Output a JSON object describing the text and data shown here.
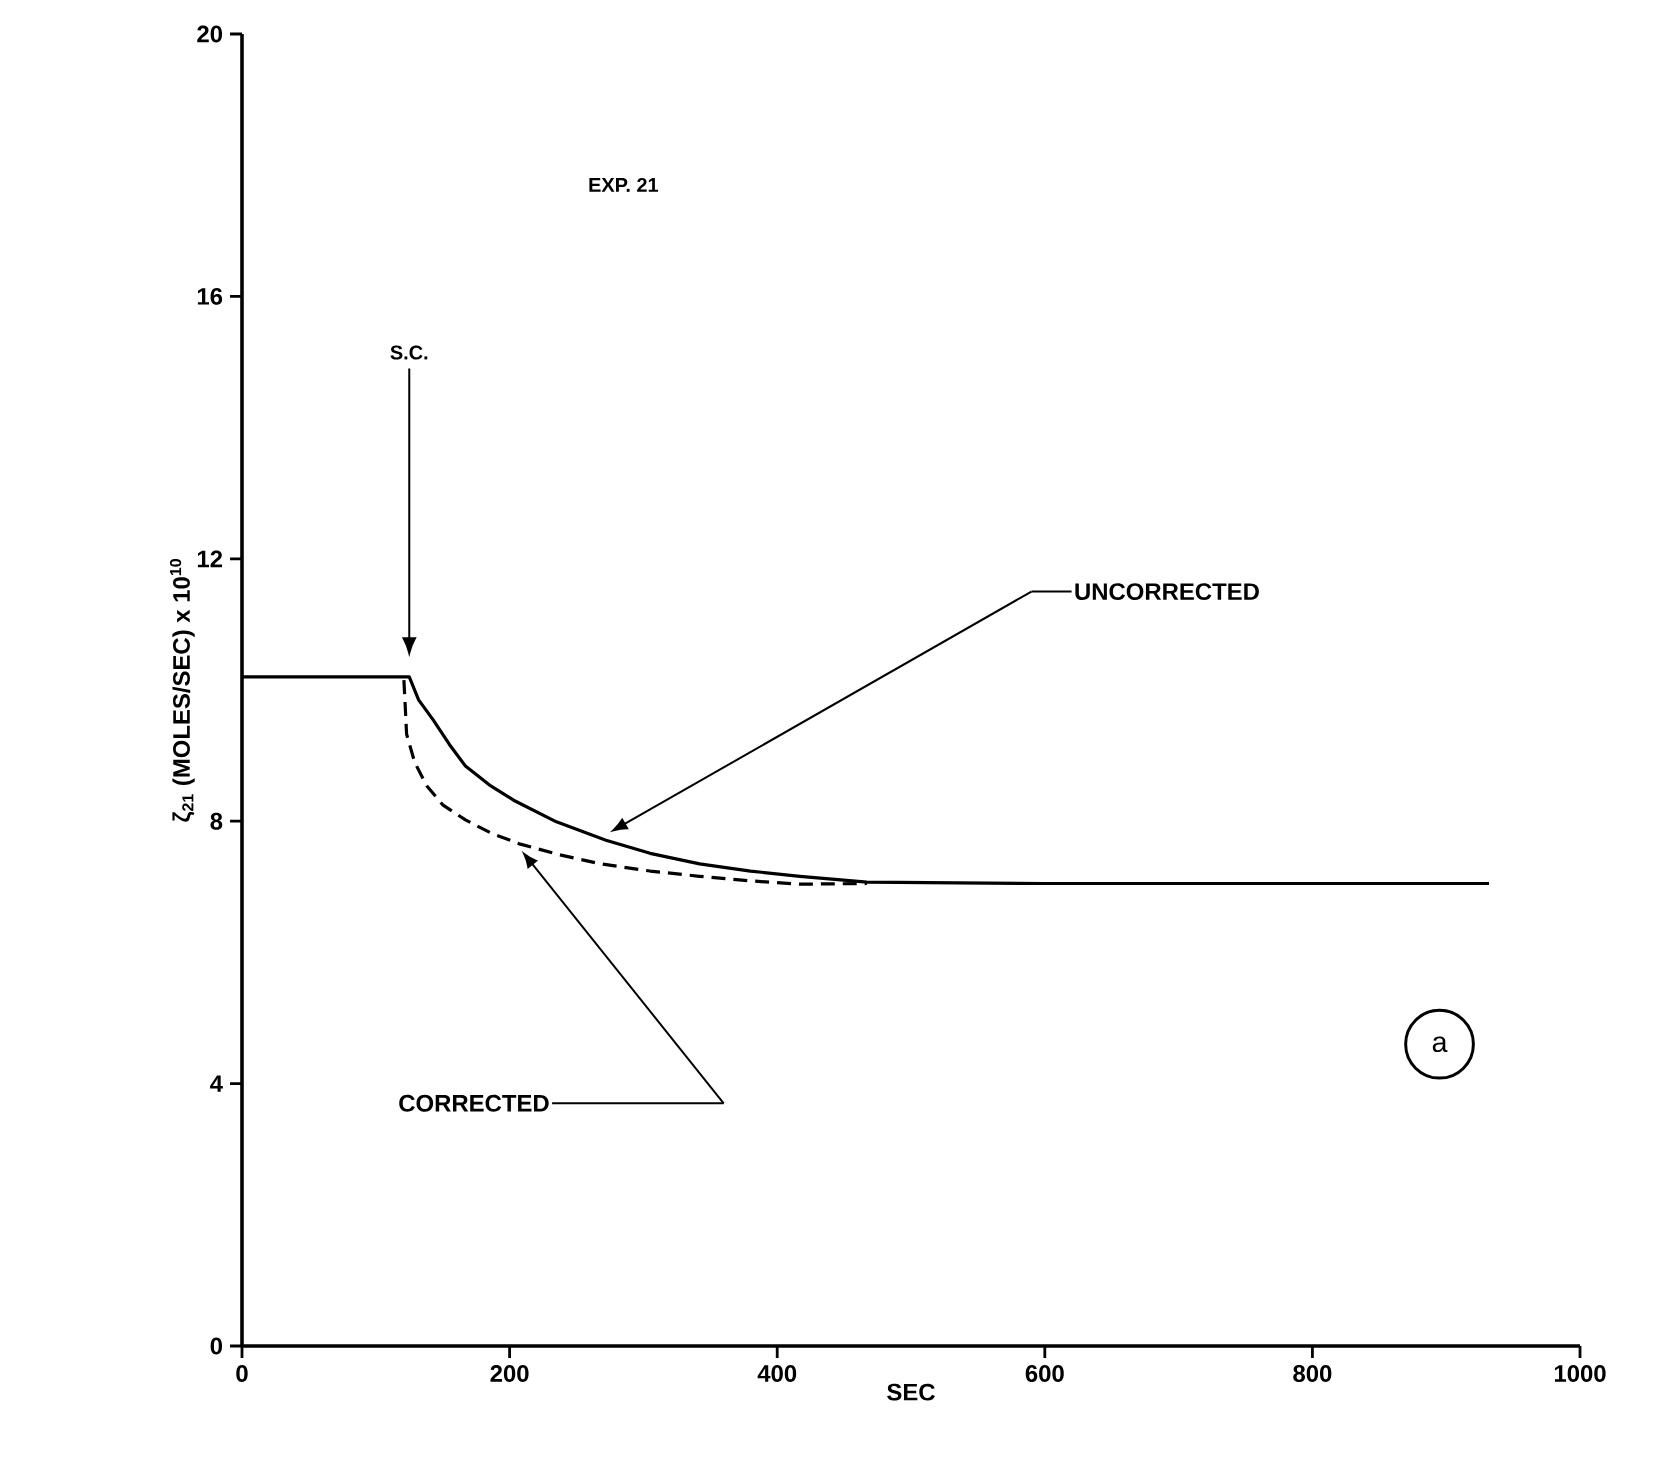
{
  "chart_data": {
    "type": "line",
    "xlabel": "SEC",
    "ylabel": "ζ$_{21}$ (MOLES/SEC) x 10$^{10}$",
    "xlim": [
      0,
      1000
    ],
    "ylim": [
      0,
      20
    ],
    "xticks": [
      0,
      200,
      400,
      600,
      800,
      1000
    ],
    "yticks": [
      0,
      4,
      8,
      12,
      16,
      20
    ],
    "series": [
      {
        "color": "#000000",
        "line_style": "solid",
        "x": [
          0,
          125,
          132,
          143,
          155,
          167,
          185,
          203,
          235,
          272,
          305,
          342,
          380,
          417,
          467,
          600,
          800,
          932
        ],
        "values": [
          10.2,
          10.2,
          9.85,
          9.54,
          9.17,
          8.84,
          8.55,
          8.32,
          7.99,
          7.71,
          7.51,
          7.35,
          7.24,
          7.16,
          7.07,
          7.05,
          7.05,
          7.05
        ]
      },
      {
        "color": "#000000",
        "line_style": "dashed",
        "x": [
          121,
          122,
          123,
          129,
          138,
          150,
          167,
          186,
          208,
          237,
          268,
          305,
          342,
          380,
          417,
          467
        ],
        "values": [
          10.15,
          9.75,
          9.33,
          8.9,
          8.54,
          8.25,
          8.02,
          7.82,
          7.65,
          7.49,
          7.35,
          7.24,
          7.16,
          7.09,
          7.04,
          7.05
        ]
      }
    ],
    "annotations": [
      "EXP. 21",
      "S.C.",
      "a",
      "UNCORRECTED",
      "CORRECTED"
    ],
    "grid": false
  }
}
